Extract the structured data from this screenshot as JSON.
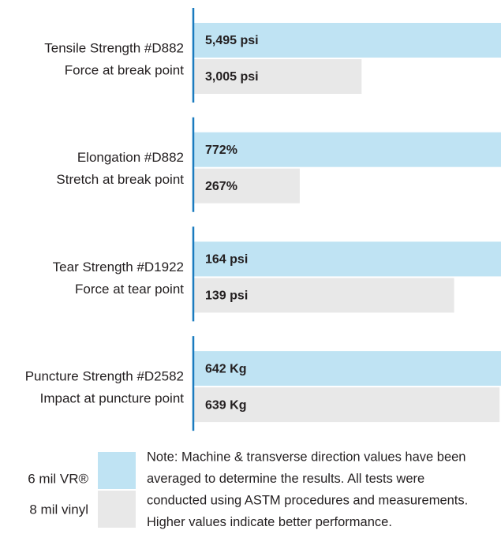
{
  "chart_data": {
    "type": "bar",
    "orientation": "horizontal",
    "categories": [
      "Tensile Strength #D882",
      "Elongation #D882",
      "Tear Strength #D1922",
      "Puncture Strength #D2582"
    ],
    "category_notes": [
      "Force at break point",
      "Stretch at break point",
      "Force at tear point",
      "Impact at puncture point"
    ],
    "series": [
      {
        "name": "6 mil VR®",
        "color": "#bfe3f3",
        "values": [
          5495,
          772,
          164,
          642
        ],
        "value_labels": [
          "5,495 psi",
          "772%",
          "164 psi",
          "642 Kg"
        ]
      },
      {
        "name": "8 mil vinyl",
        "color": "#e8e8e8",
        "values": [
          3005,
          267,
          139,
          639
        ],
        "value_labels": [
          "3,005 psi",
          "267%",
          "139 psi",
          "639 Kg"
        ]
      }
    ],
    "note": [
      "Note: Machine & transverse direction values have been",
      "averaged to determine the results. All tests were",
      "conducted using ASTM procedures and measurements.",
      "Higher values indicate better performance."
    ],
    "axis_color": "#1a7bbf"
  }
}
